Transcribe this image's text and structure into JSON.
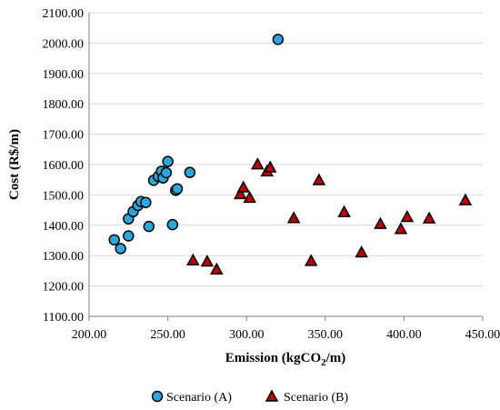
{
  "chart_data": {
    "type": "scatter",
    "xlabel": "Emission (kgCO",
    "xlabel_sub": "2",
    "xlabel_end": "/m)",
    "ylabel": "Cost (R$/m)",
    "xlim": [
      200,
      450
    ],
    "ylim": [
      1100,
      2100
    ],
    "x_ticks": [
      200,
      250,
      300,
      350,
      400,
      450
    ],
    "x_tick_labels": [
      "200.00",
      "250.00",
      "300.00",
      "350.00",
      "400.00",
      "450.00"
    ],
    "y_ticks": [
      1100,
      1200,
      1300,
      1400,
      1500,
      1600,
      1700,
      1800,
      1900,
      2000,
      2100
    ],
    "y_tick_labels": [
      "1100.00",
      "1200.00",
      "1300.00",
      "1400.00",
      "1500.00",
      "1600.00",
      "1700.00",
      "1800.00",
      "1900.00",
      "2000.00",
      "2100.00"
    ],
    "grid": "horizontal",
    "legend_position": "bottom",
    "series": [
      {
        "name": "Scenario (A)",
        "marker": "circle",
        "color": "#29A8E0",
        "points": [
          {
            "x": 216,
            "y": 1352
          },
          {
            "x": 220,
            "y": 1323
          },
          {
            "x": 225,
            "y": 1365
          },
          {
            "x": 225,
            "y": 1421
          },
          {
            "x": 228,
            "y": 1445
          },
          {
            "x": 231,
            "y": 1465
          },
          {
            "x": 233,
            "y": 1478
          },
          {
            "x": 236,
            "y": 1475
          },
          {
            "x": 238,
            "y": 1396
          },
          {
            "x": 241,
            "y": 1548
          },
          {
            "x": 244,
            "y": 1561
          },
          {
            "x": 246,
            "y": 1578
          },
          {
            "x": 247,
            "y": 1556
          },
          {
            "x": 249,
            "y": 1573
          },
          {
            "x": 250,
            "y": 1610
          },
          {
            "x": 253,
            "y": 1402
          },
          {
            "x": 255,
            "y": 1515
          },
          {
            "x": 256,
            "y": 1520
          },
          {
            "x": 264,
            "y": 1574
          },
          {
            "x": 320,
            "y": 2012
          }
        ]
      },
      {
        "name": "Scenario (B)",
        "marker": "triangle",
        "color": "#C00000",
        "points": [
          {
            "x": 266,
            "y": 1282
          },
          {
            "x": 275,
            "y": 1278
          },
          {
            "x": 281,
            "y": 1252
          },
          {
            "x": 296,
            "y": 1500
          },
          {
            "x": 298,
            "y": 1522
          },
          {
            "x": 302,
            "y": 1488
          },
          {
            "x": 307,
            "y": 1598
          },
          {
            "x": 313,
            "y": 1575
          },
          {
            "x": 315,
            "y": 1588
          },
          {
            "x": 330,
            "y": 1421
          },
          {
            "x": 341,
            "y": 1280
          },
          {
            "x": 346,
            "y": 1546
          },
          {
            "x": 362,
            "y": 1441
          },
          {
            "x": 373,
            "y": 1308
          },
          {
            "x": 385,
            "y": 1402
          },
          {
            "x": 398,
            "y": 1385
          },
          {
            "x": 402,
            "y": 1425
          },
          {
            "x": 416,
            "y": 1420
          },
          {
            "x": 439,
            "y": 1480
          }
        ]
      }
    ]
  }
}
